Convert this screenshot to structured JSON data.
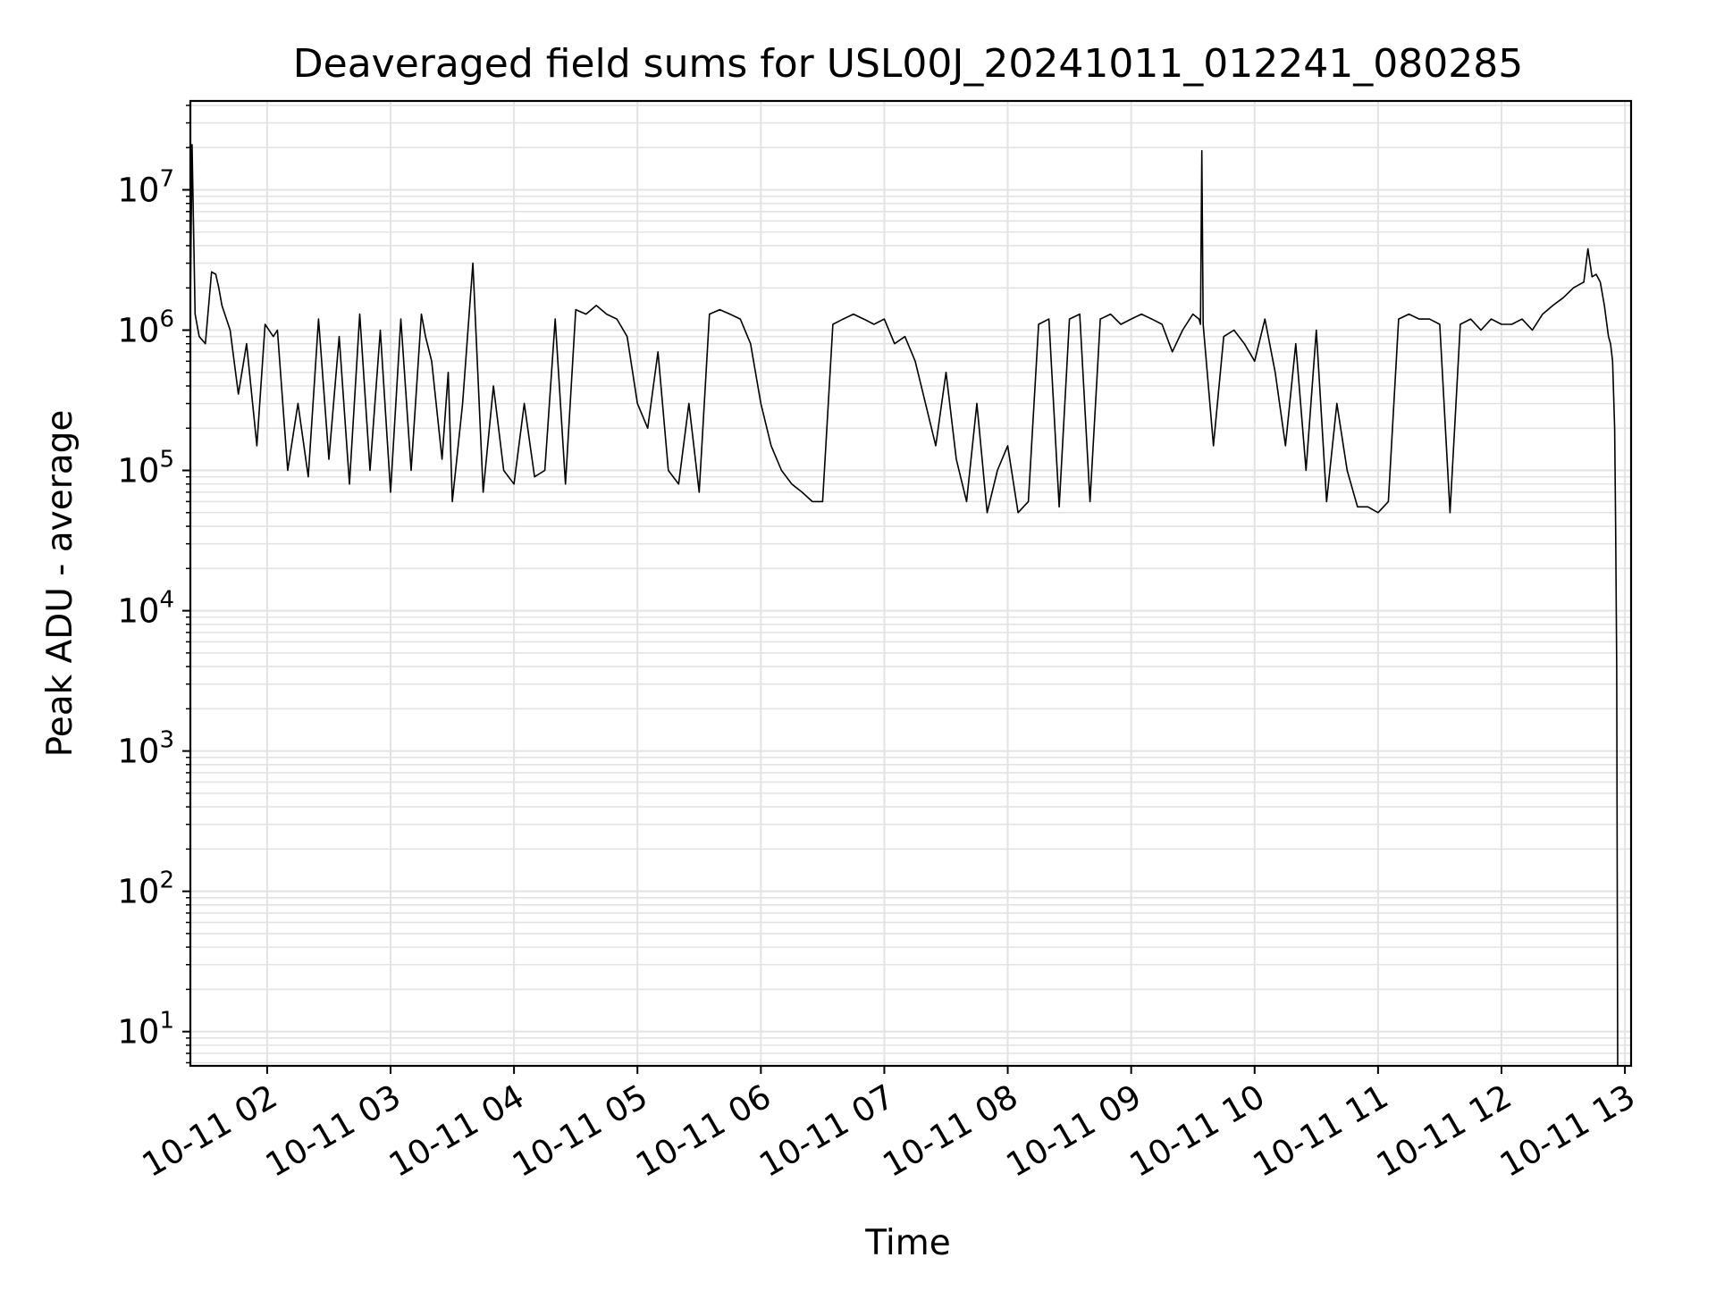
{
  "chart_data": {
    "type": "line",
    "title": "Deaveraged field sums for USL00J_20241011_012241_080285",
    "xlabel": "Time",
    "ylabel": "Peak ADU - average",
    "yscale": "log",
    "ylim": [
      5.7,
      43000000
    ],
    "xlim": [
      "2024-10-11 01:22:41",
      "2024-10-11 13:03:00"
    ],
    "grid": true,
    "line_color": "#000000",
    "grid_color": "#e3e3e3",
    "x_ticks": [
      {
        "value": "2024-10-11 02:00",
        "label": "10-11 02"
      },
      {
        "value": "2024-10-11 03:00",
        "label": "10-11 03"
      },
      {
        "value": "2024-10-11 04:00",
        "label": "10-11 04"
      },
      {
        "value": "2024-10-11 05:00",
        "label": "10-11 05"
      },
      {
        "value": "2024-10-11 06:00",
        "label": "10-11 06"
      },
      {
        "value": "2024-10-11 07:00",
        "label": "10-11 07"
      },
      {
        "value": "2024-10-11 08:00",
        "label": "10-11 08"
      },
      {
        "value": "2024-10-11 09:00",
        "label": "10-11 09"
      },
      {
        "value": "2024-10-11 10:00",
        "label": "10-11 10"
      },
      {
        "value": "2024-10-11 11:00",
        "label": "10-11 11"
      },
      {
        "value": "2024-10-11 12:00",
        "label": "10-11 12"
      },
      {
        "value": "2024-10-11 13:00",
        "label": "10-11 13"
      }
    ],
    "y_ticks": [
      {
        "value": 10,
        "base": "10",
        "exp": "1"
      },
      {
        "value": 100,
        "base": "10",
        "exp": "2"
      },
      {
        "value": 1000,
        "base": "10",
        "exp": "3"
      },
      {
        "value": 10000,
        "base": "10",
        "exp": "4"
      },
      {
        "value": 100000,
        "base": "10",
        "exp": "5"
      },
      {
        "value": 1000000,
        "base": "10",
        "exp": "6"
      },
      {
        "value": 10000000,
        "base": "10",
        "exp": "7"
      }
    ],
    "series": [
      {
        "x": [
          "2024-10-11 01:22:41",
          "2024-10-11 01:23:30",
          "2024-10-11 01:25:00",
          "2024-10-11 01:27:00",
          "2024-10-11 01:30:00",
          "2024-10-11 01:33:00",
          "2024-10-11 01:35:00",
          "2024-10-11 01:36:30",
          "2024-10-11 01:38:00",
          "2024-10-11 01:42:00",
          "2024-10-11 01:46:00",
          "2024-10-11 01:50:00",
          "2024-10-11 01:55:00",
          "2024-10-11 01:59:00",
          "2024-10-11 02:03:00",
          "2024-10-11 02:05:00",
          "2024-10-11 02:10:00",
          "2024-10-11 02:15:00",
          "2024-10-11 02:20:00",
          "2024-10-11 02:25:00",
          "2024-10-11 02:30:00",
          "2024-10-11 02:35:00",
          "2024-10-11 02:40:00",
          "2024-10-11 02:45:00",
          "2024-10-11 02:50:00",
          "2024-10-11 02:55:00",
          "2024-10-11 03:00:00",
          "2024-10-11 03:05:00",
          "2024-10-11 03:10:00",
          "2024-10-11 03:15:00",
          "2024-10-11 03:17:00",
          "2024-10-11 03:20:00",
          "2024-10-11 03:25:00",
          "2024-10-11 03:28:00",
          "2024-10-11 03:30:00",
          "2024-10-11 03:35:00",
          "2024-10-11 03:40:00",
          "2024-10-11 03:45:00",
          "2024-10-11 03:50:00",
          "2024-10-11 03:55:00",
          "2024-10-11 04:00:00",
          "2024-10-11 04:05:00",
          "2024-10-11 04:10:00",
          "2024-10-11 04:15:00",
          "2024-10-11 04:20:00",
          "2024-10-11 04:25:00",
          "2024-10-11 04:30:00",
          "2024-10-11 04:35:00",
          "2024-10-11 04:40:00",
          "2024-10-11 04:45:00",
          "2024-10-11 04:50:00",
          "2024-10-11 04:55:00",
          "2024-10-11 05:00:00",
          "2024-10-11 05:05:00",
          "2024-10-11 05:10:00",
          "2024-10-11 05:15:00",
          "2024-10-11 05:20:00",
          "2024-10-11 05:25:00",
          "2024-10-11 05:30:00",
          "2024-10-11 05:35:00",
          "2024-10-11 05:40:00",
          "2024-10-11 05:45:00",
          "2024-10-11 05:50:00",
          "2024-10-11 05:55:00",
          "2024-10-11 06:00:00",
          "2024-10-11 06:05:00",
          "2024-10-11 06:10:00",
          "2024-10-11 06:15:00",
          "2024-10-11 06:20:00",
          "2024-10-11 06:25:00",
          "2024-10-11 06:30:00",
          "2024-10-11 06:35:00",
          "2024-10-11 06:40:00",
          "2024-10-11 06:45:00",
          "2024-10-11 06:50:00",
          "2024-10-11 06:55:00",
          "2024-10-11 07:00:00",
          "2024-10-11 07:05:00",
          "2024-10-11 07:10:00",
          "2024-10-11 07:15:00",
          "2024-10-11 07:20:00",
          "2024-10-11 07:25:00",
          "2024-10-11 07:30:00",
          "2024-10-11 07:35:00",
          "2024-10-11 07:40:00",
          "2024-10-11 07:45:00",
          "2024-10-11 07:50:00",
          "2024-10-11 07:55:00",
          "2024-10-11 08:00:00",
          "2024-10-11 08:05:00",
          "2024-10-11 08:10:00",
          "2024-10-11 08:15:00",
          "2024-10-11 08:20:00",
          "2024-10-11 08:25:00",
          "2024-10-11 08:30:00",
          "2024-10-11 08:35:00",
          "2024-10-11 08:40:00",
          "2024-10-11 08:45:00",
          "2024-10-11 08:50:00",
          "2024-10-11 08:55:00",
          "2024-10-11 09:00:00",
          "2024-10-11 09:05:00",
          "2024-10-11 09:10:00",
          "2024-10-11 09:15:00",
          "2024-10-11 09:20:00",
          "2024-10-11 09:25:00",
          "2024-10-11 09:30:00",
          "2024-10-11 09:33:00",
          "2024-10-11 09:33:40",
          "2024-10-11 09:34:20",
          "2024-10-11 09:35:00",
          "2024-10-11 09:40:00",
          "2024-10-11 09:45:00",
          "2024-10-11 09:50:00",
          "2024-10-11 09:55:00",
          "2024-10-11 10:00:00",
          "2024-10-11 10:05:00",
          "2024-10-11 10:10:00",
          "2024-10-11 10:15:00",
          "2024-10-11 10:20:00",
          "2024-10-11 10:25:00",
          "2024-10-11 10:30:00",
          "2024-10-11 10:35:00",
          "2024-10-11 10:40:00",
          "2024-10-11 10:45:00",
          "2024-10-11 10:50:00",
          "2024-10-11 10:55:00",
          "2024-10-11 11:00:00",
          "2024-10-11 11:05:00",
          "2024-10-11 11:10:00",
          "2024-10-11 11:15:00",
          "2024-10-11 11:20:00",
          "2024-10-11 11:25:00",
          "2024-10-11 11:30:00",
          "2024-10-11 11:35:00",
          "2024-10-11 11:40:00",
          "2024-10-11 11:45:00",
          "2024-10-11 11:50:00",
          "2024-10-11 11:55:00",
          "2024-10-11 12:00:00",
          "2024-10-11 12:05:00",
          "2024-10-11 12:10:00",
          "2024-10-11 12:15:00",
          "2024-10-11 12:20:00",
          "2024-10-11 12:25:00",
          "2024-10-11 12:30:00",
          "2024-10-11 12:35:00",
          "2024-10-11 12:40:00",
          "2024-10-11 12:42:00",
          "2024-10-11 12:44:00",
          "2024-10-11 12:46:00",
          "2024-10-11 12:48:00",
          "2024-10-11 12:50:00",
          "2024-10-11 12:52:00",
          "2024-10-11 12:53:00",
          "2024-10-11 12:54:00",
          "2024-10-11 12:55:00",
          "2024-10-11 12:55:30",
          "2024-10-11 12:56:00",
          "2024-10-11 12:56:30"
        ],
        "y": [
          1500000,
          21000000,
          1300000,
          900000,
          800000,
          2600000,
          2500000,
          2000000,
          1500000,
          1000000,
          350000,
          800000,
          150000,
          1100000,
          900000,
          1000000,
          100000,
          300000,
          90000,
          1200000,
          120000,
          900000,
          80000,
          1300000,
          100000,
          1000000,
          70000,
          1200000,
          100000,
          1300000,
          900000,
          600000,
          120000,
          500000,
          60000,
          300000,
          3000000,
          70000,
          400000,
          100000,
          80000,
          300000,
          90000,
          100000,
          1200000,
          80000,
          1400000,
          1300000,
          1500000,
          1300000,
          1200000,
          900000,
          300000,
          200000,
          700000,
          100000,
          80000,
          300000,
          70000,
          1300000,
          1400000,
          1300000,
          1200000,
          800000,
          300000,
          150000,
          100000,
          80000,
          70000,
          60000,
          60000,
          1100000,
          1200000,
          1300000,
          1200000,
          1100000,
          1200000,
          800000,
          900000,
          600000,
          300000,
          150000,
          500000,
          120000,
          60000,
          300000,
          50000,
          100000,
          150000,
          50000,
          60000,
          1100000,
          1200000,
          55000,
          1200000,
          1300000,
          60000,
          1200000,
          1300000,
          1100000,
          1200000,
          1300000,
          1200000,
          1100000,
          700000,
          1000000,
          1300000,
          1200000,
          1100000,
          19000000,
          1100000,
          150000,
          900000,
          1000000,
          800000,
          600000,
          1200000,
          500000,
          150000,
          800000,
          100000,
          1000000,
          60000,
          300000,
          100000,
          55000,
          55000,
          50000,
          60000,
          1200000,
          1300000,
          1200000,
          1200000,
          1100000,
          50000,
          1100000,
          1200000,
          1000000,
          1200000,
          1100000,
          1100000,
          1200000,
          1000000,
          1300000,
          1500000,
          1700000,
          2000000,
          2200000,
          3800000,
          2400000,
          2500000,
          2200000,
          1500000,
          900000,
          800000,
          600000,
          200000,
          40000,
          4000,
          5.7
        ]
      }
    ]
  }
}
